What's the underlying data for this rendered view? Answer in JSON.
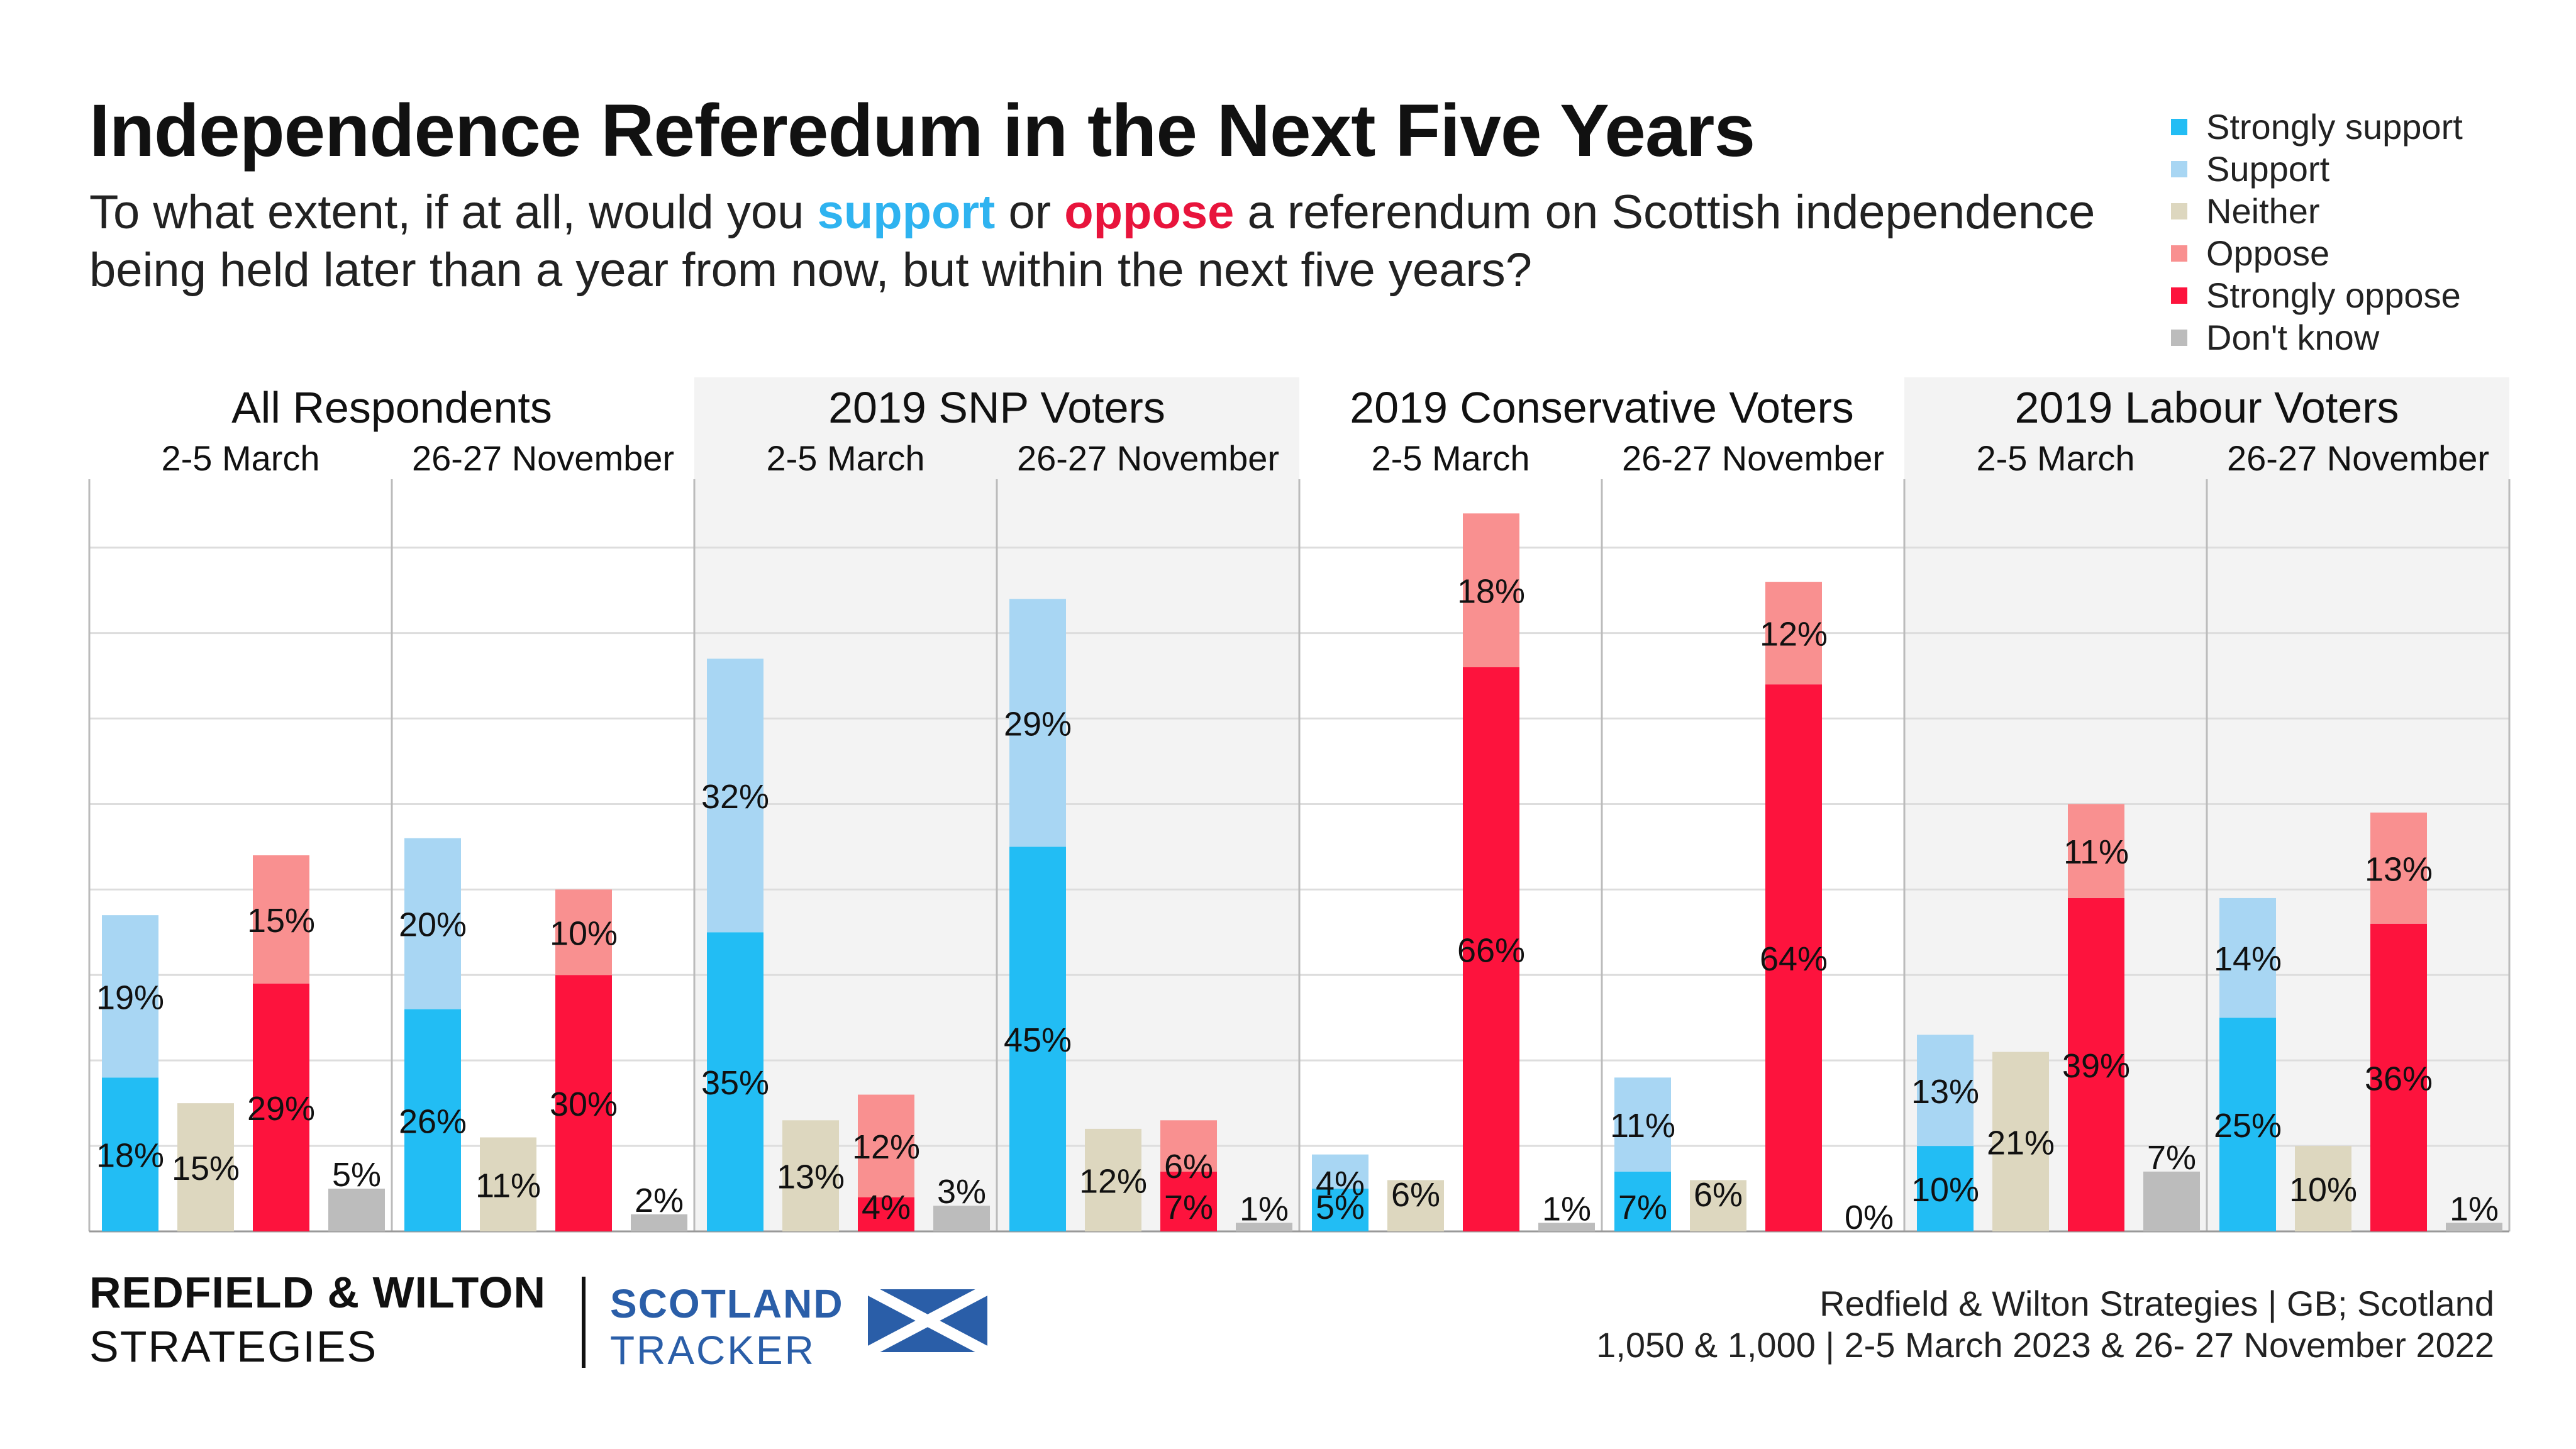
{
  "title": "Independence Referedum in the Next Five Years",
  "subtitle": {
    "part1": "To what extent, if at all, would you ",
    "support_word": "support",
    "part2": " or ",
    "oppose_word": "oppose",
    "part3": " a referendum on Scottish independence being held later than a year from now, but within the next five years?"
  },
  "legend": [
    {
      "label": "Strongly support",
      "color": "#22bdf4"
    },
    {
      "label": "Support",
      "color": "#a8d6f3"
    },
    {
      "label": "Neither",
      "color": "#ddd7bf"
    },
    {
      "label": "Oppose",
      "color": "#f99090"
    },
    {
      "label": "Strongly oppose",
      "color": "#fd133d"
    },
    {
      "label": "Don't know",
      "color": "#bcbcbc"
    }
  ],
  "footer": {
    "brand_line1": "REDFIELD & WILTON",
    "brand_line2": "STRATEGIES",
    "tracker_line1": "SCOTLAND",
    "tracker_line2": "TRACKER",
    "flag_icon": "saltire-flag-icon",
    "source_line1": "Redfield & Wilton Strategies | GB; Scotland",
    "source_line2": "1,050 & 1,000 | 2-5 March 2023 & 26- 27 November 2022"
  },
  "chart_data": {
    "type": "bar",
    "stacking": "support and oppose columns stacked",
    "ylim": [
      0,
      88
    ],
    "grid": true,
    "legend_position": "top-right",
    "groups": [
      {
        "name": "All Respondents",
        "periods": [
          {
            "label": "2-5 March",
            "strongly_support": 18,
            "support": 19,
            "neither": 15,
            "oppose": 15,
            "strongly_oppose": 29,
            "dont_know": 5
          },
          {
            "label": "26-27 November",
            "strongly_support": 26,
            "support": 20,
            "neither": 11,
            "oppose": 10,
            "strongly_oppose": 30,
            "dont_know": 2
          }
        ]
      },
      {
        "name": "2019 SNP Voters",
        "periods": [
          {
            "label": "2-5 March",
            "strongly_support": 35,
            "support": 32,
            "neither": 13,
            "oppose": 12,
            "strongly_oppose": 4,
            "dont_know": 3
          },
          {
            "label": "26-27 November",
            "strongly_support": 45,
            "support": 29,
            "neither": 12,
            "oppose": 6,
            "strongly_oppose": 7,
            "dont_know": 1
          }
        ]
      },
      {
        "name": "2019 Conservative Voters",
        "periods": [
          {
            "label": "2-5 March",
            "strongly_support": 5,
            "support": 4,
            "neither": 6,
            "oppose": 18,
            "strongly_oppose": 66,
            "dont_know": 1
          },
          {
            "label": "26-27 November",
            "strongly_support": 7,
            "support": 11,
            "neither": 6,
            "oppose": 12,
            "strongly_oppose": 64,
            "dont_know": 0
          }
        ]
      },
      {
        "name": "2019 Labour Voters",
        "periods": [
          {
            "label": "2-5 March",
            "strongly_support": 10,
            "support": 13,
            "neither": 21,
            "oppose": 11,
            "strongly_oppose": 39,
            "dont_know": 7
          },
          {
            "label": "26-27 November",
            "strongly_support": 25,
            "support": 14,
            "neither": 10,
            "oppose": 13,
            "strongly_oppose": 36,
            "dont_know": 1
          }
        ]
      }
    ]
  }
}
